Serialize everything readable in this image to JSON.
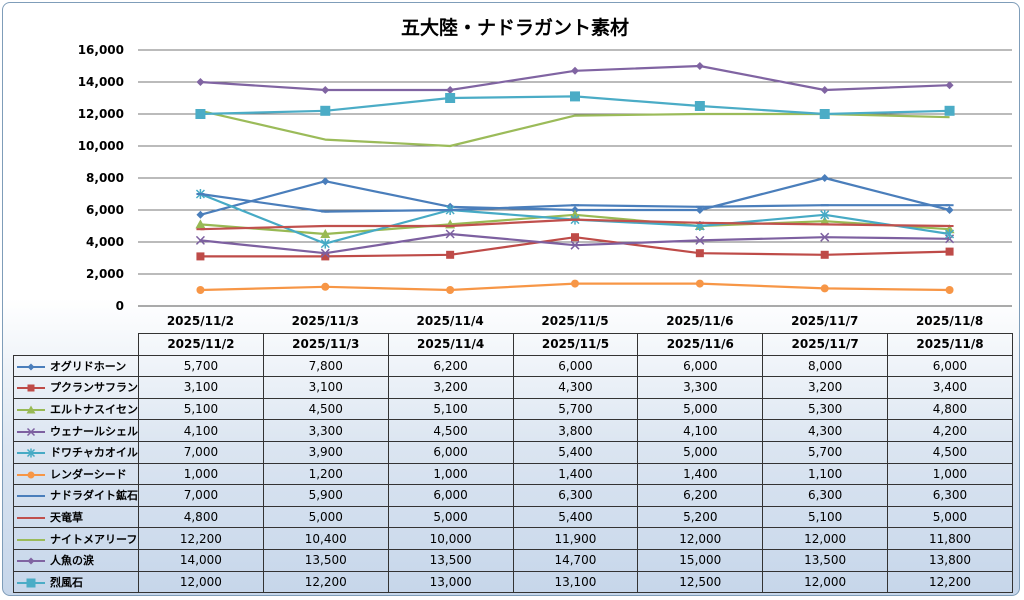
{
  "chart_data": {
    "type": "line",
    "title": "五大陸・ナドラガント素材",
    "categories": [
      "2025/11/2",
      "2025/11/3",
      "2025/11/4",
      "2025/11/5",
      "2025/11/6",
      "2025/11/7",
      "2025/11/8"
    ],
    "ylim": [
      0,
      16000
    ],
    "yticks": [
      "0",
      "2,000",
      "4,000",
      "6,000",
      "8,000",
      "10,000",
      "12,000",
      "14,000",
      "16,000"
    ],
    "grid": true,
    "legend": "data table below chart",
    "series": [
      {
        "name": "オグリドホーン",
        "values": [
          5700,
          7800,
          6200,
          6000,
          6000,
          8000,
          6000
        ],
        "labels": [
          "5,700",
          "7,800",
          "6,200",
          "6,000",
          "6,000",
          "8,000",
          "6,000"
        ],
        "color": "#4a7ebb",
        "marker": "diamond"
      },
      {
        "name": "プクランサフラン",
        "values": [
          3100,
          3100,
          3200,
          4300,
          3300,
          3200,
          3400
        ],
        "labels": [
          "3,100",
          "3,100",
          "3,200",
          "4,300",
          "3,300",
          "3,200",
          "3,400"
        ],
        "color": "#be4b48",
        "marker": "square"
      },
      {
        "name": "エルトナスイセン",
        "values": [
          5100,
          4500,
          5100,
          5700,
          5000,
          5300,
          4800
        ],
        "labels": [
          "5,100",
          "4,500",
          "5,100",
          "5,700",
          "5,000",
          "5,300",
          "4,800"
        ],
        "color": "#98b954",
        "marker": "triangle"
      },
      {
        "name": "ウェナールシェル",
        "values": [
          4100,
          3300,
          4500,
          3800,
          4100,
          4300,
          4200
        ],
        "labels": [
          "4,100",
          "3,300",
          "4,500",
          "3,800",
          "4,100",
          "4,300",
          "4,200"
        ],
        "color": "#7d60a0",
        "marker": "x"
      },
      {
        "name": "ドワチャカオイル",
        "values": [
          7000,
          3900,
          6000,
          5400,
          5000,
          5700,
          4500
        ],
        "labels": [
          "7,000",
          "3,900",
          "6,000",
          "5,400",
          "5,000",
          "5,700",
          "4,500"
        ],
        "color": "#46aac5",
        "marker": "star"
      },
      {
        "name": "レンダーシード",
        "values": [
          1000,
          1200,
          1000,
          1400,
          1400,
          1100,
          1000
        ],
        "labels": [
          "1,000",
          "1,200",
          "1,000",
          "1,400",
          "1,400",
          "1,100",
          "1,000"
        ],
        "color": "#f79646",
        "marker": "circle"
      },
      {
        "name": "ナドラダイト鉱石",
        "values": [
          7000,
          5900,
          6000,
          6300,
          6200,
          6300,
          6300
        ],
        "labels": [
          "7,000",
          "5,900",
          "6,000",
          "6,300",
          "6,200",
          "6,300",
          "6,300"
        ],
        "color": "#4a7ebb",
        "marker": "dash"
      },
      {
        "name": "天竜草",
        "values": [
          4800,
          5000,
          5000,
          5400,
          5200,
          5100,
          5000
        ],
        "labels": [
          "4,800",
          "5,000",
          "5,000",
          "5,400",
          "5,200",
          "5,100",
          "5,000"
        ],
        "color": "#c0504d",
        "marker": "dash"
      },
      {
        "name": "ナイトメアリーフ",
        "values": [
          12200,
          10400,
          10000,
          11900,
          12000,
          12000,
          11800
        ],
        "labels": [
          "12,200",
          "10,400",
          "10,000",
          "11,900",
          "12,000",
          "12,000",
          "11,800"
        ],
        "color": "#9bbb59",
        "marker": "none"
      },
      {
        "name": "人魚の涙",
        "values": [
          14000,
          13500,
          13500,
          14700,
          15000,
          13500,
          13800
        ],
        "labels": [
          "14,000",
          "13,500",
          "13,500",
          "14,700",
          "15,000",
          "13,500",
          "13,800"
        ],
        "color": "#8064a2",
        "marker": "diamond"
      },
      {
        "name": "烈風石",
        "values": [
          12000,
          12200,
          13000,
          13100,
          12500,
          12000,
          12200
        ],
        "labels": [
          "12,000",
          "12,200",
          "13,000",
          "13,100",
          "12,500",
          "12,000",
          "12,200"
        ],
        "color": "#4bacc6",
        "marker": "bigsquare"
      }
    ]
  }
}
